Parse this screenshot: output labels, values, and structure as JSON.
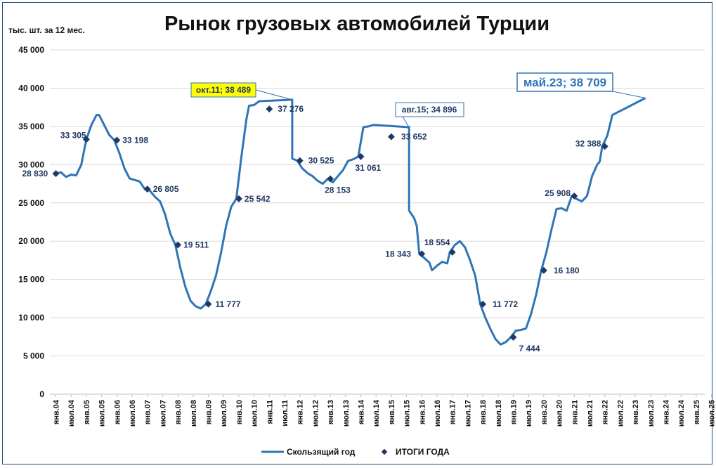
{
  "chart_data": {
    "type": "line",
    "title": "Рынок грузовых автомобилей Турции",
    "ylabel": "тыс. шт. за 12 мес.",
    "ylim": [
      0,
      45000
    ],
    "yticks": [
      0,
      5000,
      10000,
      15000,
      20000,
      25000,
      30000,
      35000,
      40000,
      45000
    ],
    "ytick_labels": [
      "0",
      "5 000",
      "10 000",
      "15 000",
      "20 000",
      "25 000",
      "30 000",
      "35 000",
      "40 000",
      "45 000"
    ],
    "x_tick_labels": [
      "янв.04",
      "июл.04",
      "янв.05",
      "июл.05",
      "янв.06",
      "июл.06",
      "янв.07",
      "июл.07",
      "янв.08",
      "июл.08",
      "янв.09",
      "июл.09",
      "янв.10",
      "июл.10",
      "янв.11",
      "июл.11",
      "янв.12",
      "июл.12",
      "янв.13",
      "июл.13",
      "янв.14",
      "июл.14",
      "янв.15",
      "июл.15",
      "янв.16",
      "июл.16",
      "янв.17",
      "июл.17",
      "янв.18",
      "июл.18",
      "янв.19",
      "июл.19",
      "янв.20",
      "июл.20",
      "янв.21",
      "июл.21",
      "янв.22",
      "июл.22",
      "янв.23",
      "июл.23",
      "янв.24",
      "июл.24",
      "янв.25",
      "июл.25"
    ],
    "grid": true,
    "legend_position": "bottom",
    "series": [
      {
        "name": "Скользящий год",
        "color": "#2e75b6",
        "points": [
          [
            "янв.04",
            28830
          ],
          [
            "мар.04",
            29000
          ],
          [
            "май.04",
            28400
          ],
          [
            "июл.04",
            28700
          ],
          [
            "сен.04",
            28600
          ],
          [
            "ноя.04",
            30000
          ],
          [
            "янв.05",
            33305
          ],
          [
            "мар.05",
            35200
          ],
          [
            "май.05",
            36500
          ],
          [
            "июн.05",
            36500
          ],
          [
            "авг.05",
            35200
          ],
          [
            "окт.05",
            33900
          ],
          [
            "дек.05",
            33198
          ],
          [
            "фев.06",
            31500
          ],
          [
            "апр.06",
            29500
          ],
          [
            "июн.06",
            28200
          ],
          [
            "авг.06",
            28000
          ],
          [
            "окт.06",
            27800
          ],
          [
            "дек.06",
            26805
          ],
          [
            "фев.07",
            26600
          ],
          [
            "апр.07",
            25800
          ],
          [
            "июн.07",
            25200
          ],
          [
            "авг.07",
            23500
          ],
          [
            "окт.07",
            21000
          ],
          [
            "дек.07",
            19511
          ],
          [
            "фев.08",
            16500
          ],
          [
            "апр.08",
            14000
          ],
          [
            "июн.08",
            12200
          ],
          [
            "авг.08",
            11500
          ],
          [
            "окт.08",
            11200
          ],
          [
            "дек.08",
            11777
          ],
          [
            "фев.09",
            13500
          ],
          [
            "апр.09",
            15500
          ],
          [
            "июн.09",
            18500
          ],
          [
            "авг.09",
            22000
          ],
          [
            "окт.09",
            24500
          ],
          [
            "дек.09",
            25542
          ],
          [
            "фев.10",
            31000
          ],
          [
            "апр.10",
            36000
          ],
          [
            "май.10",
            37700
          ],
          [
            "июл.10",
            37800
          ],
          [
            "сен.10",
            38300
          ],
          [
            "окт.11",
            38489
          ],
          [
            "ноя.10",
            38000
          ],
          [
            "дек.10",
            37276
          ],
          [
            "фев.11",
            35000
          ],
          [
            "апр.11",
            32800
          ],
          [
            "июн.11",
            31800
          ],
          [
            "авг.11",
            31500
          ],
          [
            "окт.11",
            30800
          ],
          [
            "дек.11",
            30525
          ],
          [
            "фев.12",
            29500
          ],
          [
            "апр.12",
            28900
          ],
          [
            "июн.12",
            28500
          ],
          [
            "авг.12",
            27900
          ],
          [
            "окт.12",
            27500
          ],
          [
            "дек.12",
            28153
          ],
          [
            "фев.13",
            27700
          ],
          [
            "апр.13",
            28500
          ],
          [
            "июн.13",
            29300
          ],
          [
            "авг.13",
            30500
          ],
          [
            "окт.13",
            30700
          ],
          [
            "дек.13",
            31061
          ],
          [
            "фев.14",
            34900
          ],
          [
            "апр.14",
            35000
          ],
          [
            "июн.14",
            35200
          ],
          [
            "авг.15",
            34896
          ],
          [
            "сен.14",
            33800
          ],
          [
            "ноя.14",
            33300
          ],
          [
            "дек.14",
            33652
          ],
          [
            "фев.15",
            30500
          ],
          [
            "апр.15",
            27000
          ],
          [
            "июн.15",
            26000
          ],
          [
            "авг.15",
            24000
          ],
          [
            "окт.15",
            23000
          ],
          [
            "ноя.15",
            22000
          ],
          [
            "дек.15",
            18343
          ],
          [
            "фев.16",
            17800
          ],
          [
            "апр.16",
            17200
          ],
          [
            "май.16",
            16200
          ],
          [
            "июл.16",
            16800
          ],
          [
            "сен.16",
            17300
          ],
          [
            "ноя.16",
            17100
          ],
          [
            "дек.16",
            18554
          ],
          [
            "фев.17",
            19500
          ],
          [
            "апр.17",
            20000
          ],
          [
            "июн.17",
            19200
          ],
          [
            "авг.17",
            17500
          ],
          [
            "окт.17",
            15500
          ],
          [
            "дек.17",
            11772
          ],
          [
            "фев.18",
            10000
          ],
          [
            "апр.18",
            8500
          ],
          [
            "июн.18",
            7200
          ],
          [
            "авг.18",
            6500
          ],
          [
            "окт.18",
            6800
          ],
          [
            "дек.18",
            7444
          ],
          [
            "фев.19",
            8300
          ],
          [
            "апр.19",
            8400
          ],
          [
            "июн.19",
            8600
          ],
          [
            "авг.19",
            10500
          ],
          [
            "окт.19",
            13000
          ],
          [
            "дек.19",
            16180
          ],
          [
            "фев.20",
            18500
          ],
          [
            "апр.20",
            21500
          ],
          [
            "июн.20",
            24200
          ],
          [
            "авг.20",
            24300
          ],
          [
            "окт.20",
            24000
          ],
          [
            "дек.20",
            25908
          ],
          [
            "фев.21",
            25500
          ],
          [
            "апр.21",
            25200
          ],
          [
            "июн.21",
            25900
          ],
          [
            "авг.21",
            28500
          ],
          [
            "окт.21",
            30000
          ],
          [
            "ноя.21",
            30400
          ],
          [
            "дек.21",
            32388
          ],
          [
            "фев.22",
            33800
          ],
          [
            "апр.22",
            36500
          ],
          [
            "май.23",
            38709
          ]
        ]
      },
      {
        "name": "ИТОГИ ГОДА",
        "color": "#1f3864",
        "points": [
          [
            "янв.04",
            28830
          ],
          [
            "янв.05",
            33305
          ],
          [
            "янв.06",
            33198
          ],
          [
            "янв.07",
            26805
          ],
          [
            "янв.08",
            19511
          ],
          [
            "янв.09",
            11777
          ],
          [
            "янв.10",
            25542
          ],
          [
            "янв.11",
            37276
          ],
          [
            "янв.12",
            30525
          ],
          [
            "янв.13",
            28153
          ],
          [
            "янв.14",
            31061
          ],
          [
            "янв.15",
            33652
          ],
          [
            "янв.16",
            18343
          ],
          [
            "янв.17",
            18554
          ],
          [
            "янв.18",
            11772
          ],
          [
            "янв.19",
            7444
          ],
          [
            "янв.20",
            16180
          ],
          [
            "янв.21",
            25908
          ],
          [
            "янв.22",
            32388
          ]
        ],
        "labels": [
          "28 830",
          "33 305",
          "33 198",
          "26 805",
          "19 511",
          "11 777",
          "25 542",
          "37 276",
          "30 525",
          "28 153",
          "31 061",
          "33 652",
          "18 343",
          "18 554",
          "11 772",
          "7 444",
          "16 180",
          "25 908",
          "32 388"
        ]
      }
    ],
    "callouts": [
      {
        "text": "окт.11; 38 489",
        "fill": "#ffff00"
      },
      {
        "text": "авг.15; 34 896",
        "fill": "#ffffff"
      },
      {
        "text": "май.23; 38 709",
        "fill": "#ffffff"
      }
    ]
  },
  "legend": {
    "line_label": "Скользящий год",
    "marker_label": "ИТОГИ ГОДА"
  }
}
